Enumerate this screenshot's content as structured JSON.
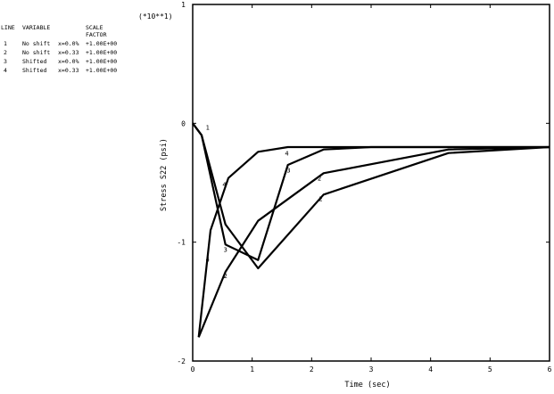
{
  "chart_data": {
    "type": "line",
    "xlabel": "Time (sec)",
    "ylabel": "Stress S22 (psi)",
    "y_multiplier": "(*10**1)",
    "xlim": [
      0,
      6
    ],
    "ylim": [
      -2,
      1
    ],
    "x_ticks": [
      0,
      1,
      2,
      3,
      4,
      5,
      6
    ],
    "y_ticks": [
      1,
      0,
      -1,
      -2
    ],
    "grid": false,
    "legend": {
      "position": "top-left",
      "headers": [
        "LINE",
        "VARIABLE",
        "SCALE FACTOR"
      ],
      "header_line1": [
        "LINE",
        "VARIABLE",
        "SCALE"
      ],
      "header_line2": [
        "",
        "",
        "FACTOR"
      ],
      "rows": [
        {
          "line": "1",
          "variable": "No shift",
          "param": "x=0.0%",
          "scale": "+1.00E+00"
        },
        {
          "line": "2",
          "variable": "No shift",
          "param": "x=0.33",
          "scale": "+1.00E+00"
        },
        {
          "line": "3",
          "variable": "Shifted",
          "param": "x=0.0%",
          "scale": "+1.00E+00"
        },
        {
          "line": "4",
          "variable": "Shifted",
          "param": "x=0.33",
          "scale": "+1.00E+00"
        }
      ]
    },
    "series": [
      {
        "name": "1",
        "x": [
          0,
          0.15,
          0.55,
          1.1,
          2.2,
          4.3,
          6.0
        ],
        "y": [
          0,
          -0.1,
          -0.85,
          -1.22,
          -0.6,
          -0.25,
          -0.2
        ]
      },
      {
        "name": "2",
        "x": [
          0.1,
          0.55,
          1.1,
          2.2,
          4.3,
          6.0
        ],
        "y": [
          -1.8,
          -1.25,
          -0.82,
          -0.42,
          -0.22,
          -0.2
        ]
      },
      {
        "name": "3",
        "x": [
          0,
          0.15,
          0.55,
          1.1,
          1.6,
          2.2,
          3.0,
          6.0
        ],
        "y": [
          0,
          -0.1,
          -1.02,
          -1.15,
          -0.35,
          -0.22,
          -0.2,
          -0.2
        ]
      },
      {
        "name": "4",
        "x": [
          0.1,
          0.3,
          0.6,
          1.1,
          1.6,
          2.2,
          6.0
        ],
        "y": [
          -1.8,
          -0.9,
          -0.46,
          -0.24,
          -0.2,
          -0.2,
          -0.2
        ]
      }
    ],
    "curve_markers": [
      {
        "label": "1",
        "x": 0.22,
        "y": -0.03
      },
      {
        "label": "2",
        "x": 0.52,
        "y": -1.28
      },
      {
        "label": "2",
        "x": 2.1,
        "y": -0.46
      },
      {
        "label": "2",
        "x": 2.12,
        "y": -0.63
      },
      {
        "label": "3",
        "x": 0.52,
        "y": -1.06
      },
      {
        "label": "3",
        "x": 1.58,
        "y": -0.39
      },
      {
        "label": "4",
        "x": 0.22,
        "y": -1.14
      },
      {
        "label": "4",
        "x": 0.5,
        "y": -0.51
      },
      {
        "label": "4",
        "x": 1.55,
        "y": -0.25
      }
    ]
  }
}
